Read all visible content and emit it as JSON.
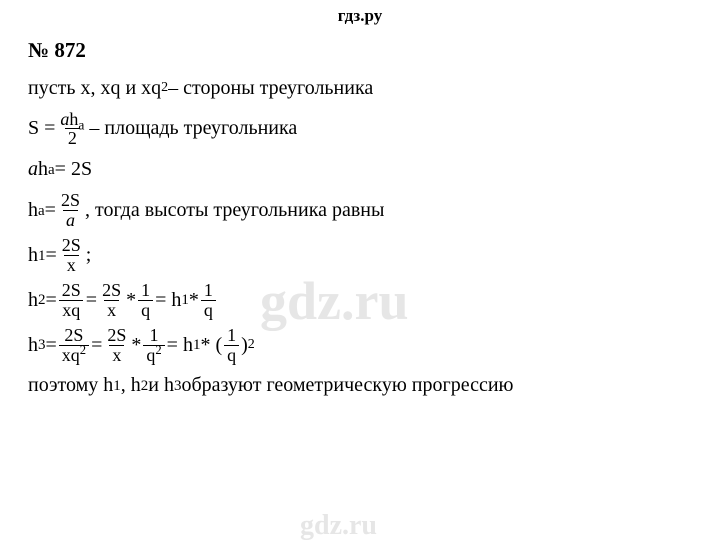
{
  "header": "гдз.ру",
  "problem_number": "№ 872",
  "watermark_big": "gdz.ru",
  "watermark_small": "gdz.ru",
  "lines": {
    "l1_pre": "пусть x, xq и xq",
    "l1_sup": "2",
    "l1_post": " – стороны треугольника",
    "l2_S": "S = ",
    "l2_num_a": "a",
    "l2_num_h": "h",
    "l2_num_sub": "a",
    "l2_den": "2",
    "l2_post": " – площадь треугольника",
    "l3_a": "a",
    "l3_h": "h",
    "l3_sub": "a",
    "l3_post": " = 2S",
    "l4_h": "h",
    "l4_sub": "a",
    "l4_eq": " = ",
    "l4_num": "2S",
    "l4_den": "a",
    "l4_post": ", тогда высоты треугольника равны",
    "l5_h": "h",
    "l5_sub": "1",
    "l5_eq": " = ",
    "l5_num": "2S",
    "l5_den": "x",
    "l5_post": ";",
    "l6_h": "h",
    "l6_sub": "2",
    "l6_eq": " = ",
    "l6_f1_num": "2S",
    "l6_f1_den": "xq",
    "l6_eq2": " = ",
    "l6_f2_num": "2S",
    "l6_f2_den": "x",
    "l6_star1": " * ",
    "l6_f3_num": "1",
    "l6_f3_den": "q",
    "l6_eq3": " = h",
    "l6_sub2": "1",
    "l6_star2": " * ",
    "l6_f4_num": "1",
    "l6_f4_den": "q",
    "l7_h": "h",
    "l7_sub": "3",
    "l7_eq": " = ",
    "l7_f1_num": "2S",
    "l7_f1_den_a": "xq",
    "l7_f1_den_sup": "2",
    "l7_eq2": " = ",
    "l7_f2_num": "2S",
    "l7_f2_den": "x",
    "l7_star1": " * ",
    "l7_f3_num": "1",
    "l7_f3_den_a": "q",
    "l7_f3_den_sup": "2",
    "l7_eq3": " = h",
    "l7_sub2": "1",
    "l7_star2": " * (",
    "l7_f4_num": "1",
    "l7_f4_den": "q",
    "l7_close": ")",
    "l7_sup": "2",
    "l8_a": "поэтому h",
    "l8_s1": "1",
    "l8_b": ", h",
    "l8_s2": "2",
    "l8_c": " и h",
    "l8_s3": "3",
    "l8_d": " образуют геометрическую прогрессию"
  }
}
